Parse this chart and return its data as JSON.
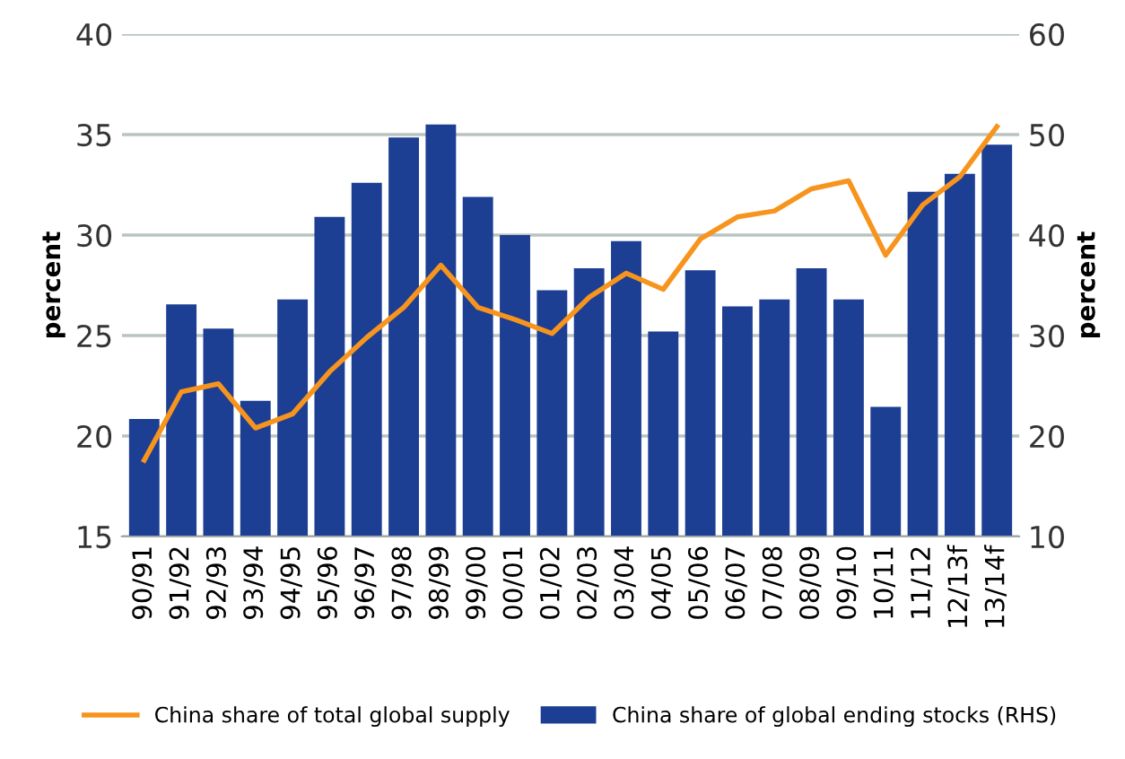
{
  "chart_data": {
    "type": "bar",
    "categories": [
      "90/91",
      "91/92",
      "92/93",
      "93/94",
      "94/95",
      "95/96",
      "96/97",
      "97/98",
      "98/99",
      "99/00",
      "00/01",
      "01/02",
      "02/03",
      "03/04",
      "04/05",
      "05/06",
      "06/07",
      "07/08",
      "08/09",
      "09/10",
      "10/11",
      "11/12",
      "12/13f",
      "13/14f"
    ],
    "series": [
      {
        "name": "China share of global ending stocks (RHS)",
        "axis": "y2",
        "color": "#1c3f94",
        "values": [
          21.7,
          33.1,
          30.7,
          23.5,
          33.6,
          41.8,
          45.2,
          49.7,
          51.0,
          43.8,
          40.0,
          34.5,
          36.7,
          39.4,
          30.4,
          36.5,
          32.9,
          33.6,
          36.7,
          33.6,
          22.9,
          44.3,
          46.1,
          49.0
        ]
      },
      {
        "name": "China share of total global supply",
        "type": "line",
        "axis": "y",
        "color": "#f7941d",
        "values": [
          18.8,
          22.2,
          22.6,
          20.4,
          21.1,
          23.2,
          24.9,
          26.4,
          28.5,
          26.4,
          25.8,
          25.1,
          26.9,
          28.1,
          27.3,
          29.8,
          30.9,
          31.2,
          32.3,
          32.7,
          29.0,
          31.5,
          32.9,
          35.4
        ]
      }
    ],
    "ylabel": "percent",
    "y2label": "percent",
    "ylim": [
      15,
      40
    ],
    "yticks": [
      15,
      20,
      25,
      30,
      35,
      40
    ],
    "y2lim": [
      10,
      60
    ],
    "y2ticks": [
      10,
      20,
      30,
      40,
      50,
      60
    ],
    "grid": "y",
    "legend": "bottom",
    "marker": "none",
    "line_style": "solid"
  }
}
